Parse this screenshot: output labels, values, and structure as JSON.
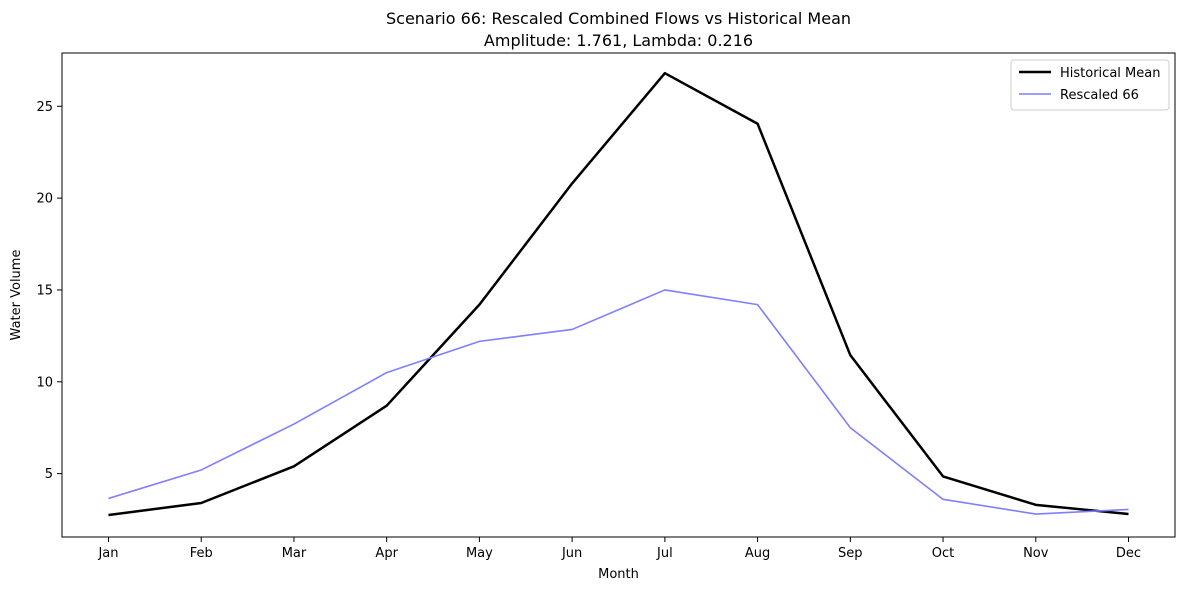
{
  "chart_data": {
    "type": "line",
    "title": "Scenario 66: Rescaled Combined Flows vs Historical Mean",
    "subtitle": "Amplitude: 1.761, Lambda: 0.216",
    "xlabel": "Month",
    "ylabel": "Water Volume",
    "categories": [
      "Jan",
      "Feb",
      "Mar",
      "Apr",
      "May",
      "Jun",
      "Jul",
      "Aug",
      "Sep",
      "Oct",
      "Nov",
      "Dec"
    ],
    "ylim": [
      1.55,
      27.9
    ],
    "yticks": [
      5,
      10,
      15,
      20,
      25
    ],
    "grid": false,
    "legend_position": "top-right",
    "series": [
      {
        "name": "Historical Mean",
        "color": "#000000",
        "values": [
          2.75,
          3.4,
          5.4,
          8.7,
          14.2,
          20.8,
          26.8,
          24.05,
          11.45,
          4.85,
          3.3,
          2.8
        ]
      },
      {
        "name": "Rescaled 66",
        "color": "#7f7fff",
        "values": [
          3.65,
          5.2,
          7.7,
          10.5,
          12.2,
          12.85,
          15.0,
          14.2,
          7.5,
          3.6,
          2.8,
          3.05
        ]
      }
    ]
  }
}
